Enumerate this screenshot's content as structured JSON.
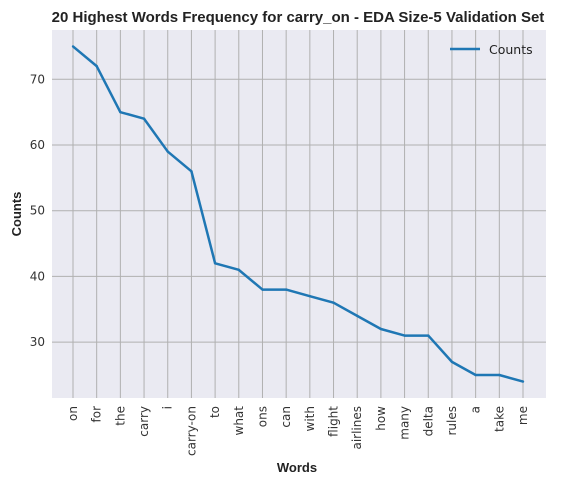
{
  "chart_data": {
    "type": "line",
    "title": "20 Highest Words Frequency for carry_on - EDA Size-5 Validation Set",
    "xlabel": "Words",
    "ylabel": "Counts",
    "categories": [
      "on",
      "for",
      "the",
      "carry",
      "i",
      "carry-on",
      "to",
      "what",
      "ons",
      "can",
      "with",
      "flight",
      "airlines",
      "how",
      "many",
      "delta",
      "rules",
      "a",
      "take",
      "me"
    ],
    "series": [
      {
        "name": "Counts",
        "values": [
          75,
          72,
          65,
          64,
          59,
          56,
          42,
          41,
          38,
          38,
          37,
          36,
          34,
          32,
          31,
          31,
          27,
          25,
          25,
          24
        ]
      }
    ],
    "yticks": [
      30,
      40,
      50,
      60,
      70
    ],
    "ylim": [
      21.5,
      77.5
    ],
    "grid": true,
    "legend_position": "top-right",
    "colors": {
      "line": "#1f77b4",
      "background": "#eaeaf2",
      "grid": "#b0b0b0"
    }
  }
}
